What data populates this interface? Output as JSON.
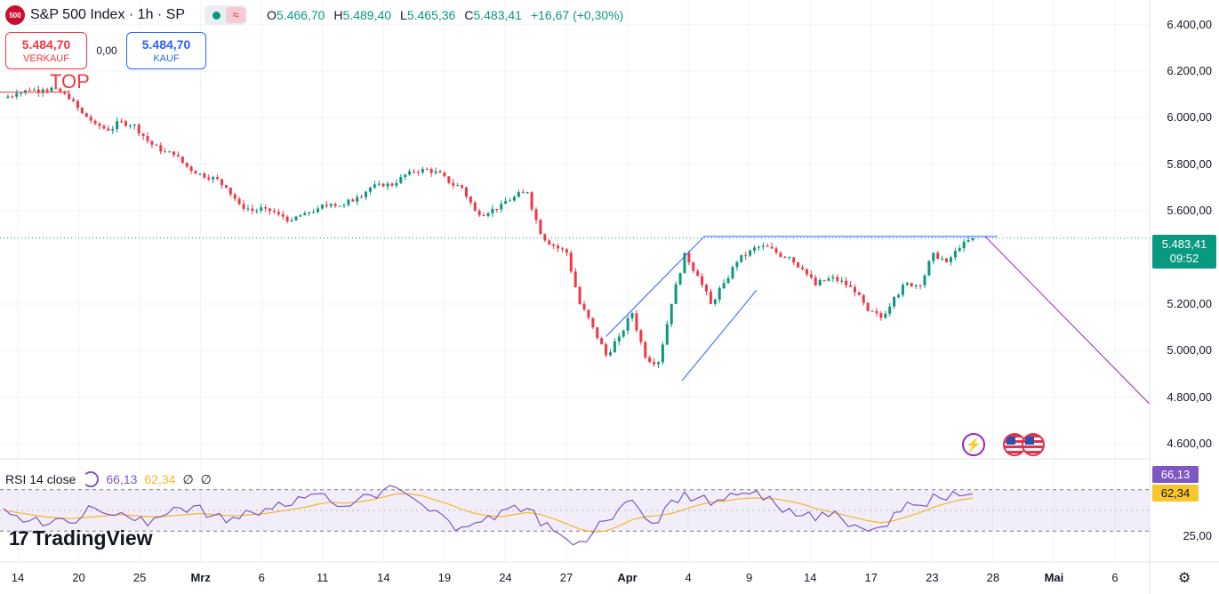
{
  "header": {
    "logo_text": "500",
    "title": "S&P 500 Index · 1h · SP",
    "market_status": "open",
    "ohlc": [
      {
        "k": "O",
        "v": "5.466,70"
      },
      {
        "k": "H",
        "v": "5.489,40"
      },
      {
        "k": "L",
        "v": "5.465,36"
      },
      {
        "k": "C",
        "v": "5.483,41"
      }
    ],
    "change": "+16,67 (+0,30%)"
  },
  "trade": {
    "sell_price": "5.484,70",
    "sell_label": "VERKAUF",
    "spread": "0,00",
    "buy_price": "5.484,70",
    "buy_label": "KAUF"
  },
  "annotation_top": "TOP",
  "last_price": {
    "price": "5.483,41",
    "countdown": "09:52"
  },
  "rsi": {
    "legend": "RSI 14 close",
    "rsi_value": "66,13",
    "ma_value": "62,34",
    "null1": "∅",
    "null2": "∅"
  },
  "branding": {
    "name": "TradingView"
  },
  "colors": {
    "up": "#089981",
    "down": "#f23645",
    "rsi": "#7e57c2",
    "rsi_ma": "#f7b529",
    "trend": "#2962ff",
    "projection": "#9c27b0"
  },
  "chart_data": [
    {
      "type": "line",
      "title": "S&P 500 Index · 1h · SP",
      "x_tick_labels": [
        "14",
        "20",
        "25",
        "Mrz",
        "6",
        "11",
        "14",
        "19",
        "24",
        "27",
        "Apr",
        "4",
        "9",
        "14",
        "17",
        "23",
        "28",
        "Mai",
        "6"
      ],
      "y_tick_labels": [
        "6.400,00",
        "6.200,00",
        "6.000,00",
        "5.800,00",
        "5.600,00",
        "5.200,00",
        "5.000,00",
        "4.800,00",
        "4.600,00"
      ],
      "ylim": [
        4550,
        6460
      ],
      "series": [
        {
          "values": [
            6085,
            6105,
            6118,
            6122,
            6125,
            6080,
            6020,
            5975,
            5945,
            5985,
            5970,
            5900,
            5855,
            5840,
            5790,
            5760,
            5745,
            5700,
            5630,
            5600,
            5610,
            5585,
            5560,
            5590,
            5610,
            5630,
            5625,
            5660,
            5700,
            5705,
            5720,
            5770,
            5780,
            5770,
            5720,
            5700,
            5600,
            5590,
            5630,
            5660,
            5680,
            5500,
            5450,
            5420,
            5200,
            5100,
            4980,
            5060,
            5160,
            4970,
            4950,
            5200,
            5420,
            5320,
            5200,
            5290,
            5380,
            5430,
            5450,
            5420,
            5400,
            5350,
            5280,
            5310,
            5300,
            5250,
            5170,
            5140,
            5230,
            5290,
            5280,
            5420,
            5380,
            5440,
            5483
          ]
        }
      ],
      "resistance_level": 5490,
      "projection_target": 4770
    },
    {
      "type": "line",
      "title": "RSI 14 close",
      "ylim": [
        0,
        100
      ],
      "y_tick_labels": [
        "25,00"
      ],
      "levels": [
        70,
        30
      ],
      "series": [
        {
          "name": "RSI 14 close",
          "values": [
            52,
            45,
            40,
            35,
            42,
            38,
            44,
            52,
            46,
            48,
            40,
            35,
            44,
            53,
            48,
            55,
            45,
            38,
            42,
            48,
            52,
            58,
            55,
            62,
            66,
            58,
            54,
            60,
            65,
            70,
            72,
            64,
            55,
            50,
            40,
            34,
            38,
            45,
            50,
            55,
            52,
            35,
            30,
            22,
            20,
            28,
            40,
            52,
            60,
            42,
            38,
            60,
            68,
            62,
            55,
            60,
            65,
            66,
            60,
            55,
            52,
            45,
            40,
            44,
            42,
            36,
            30,
            34,
            48,
            58,
            55,
            66,
            60,
            64,
            66
          ]
        },
        {
          "name": "MA",
          "values": [
            50,
            48,
            46,
            44,
            43,
            42,
            43,
            44,
            45,
            46,
            45,
            44,
            44,
            45,
            46,
            47,
            46,
            45,
            45,
            46,
            47,
            49,
            51,
            53,
            56,
            58,
            57,
            58,
            60,
            63,
            66,
            66,
            64,
            60,
            56,
            51,
            47,
            45,
            44,
            46,
            48,
            46,
            42,
            37,
            32,
            29,
            30,
            35,
            41,
            44,
            45,
            47,
            51,
            55,
            58,
            59,
            61,
            62,
            62,
            61,
            59,
            56,
            52,
            49,
            46,
            43,
            40,
            38,
            40,
            44,
            48,
            53,
            57,
            60,
            62
          ]
        }
      ]
    }
  ]
}
